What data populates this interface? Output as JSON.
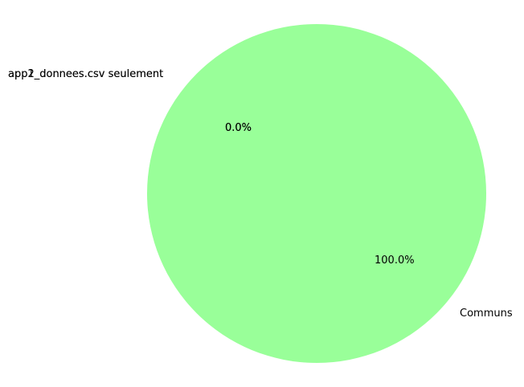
{
  "chart_data": {
    "type": "pie",
    "slices": [
      {
        "label": "app1_donnees.csv seulement",
        "value": 0,
        "pct_label": "0.0%",
        "color": "#ff9999"
      },
      {
        "label": "app2_donnees.csv seulement",
        "value": 0,
        "pct_label": "0.0%",
        "color": "#66b3ff"
      },
      {
        "label": "Communs",
        "value": 100,
        "pct_label": "100.0%",
        "color": "#99ff99"
      }
    ],
    "title": "",
    "legend": false
  }
}
